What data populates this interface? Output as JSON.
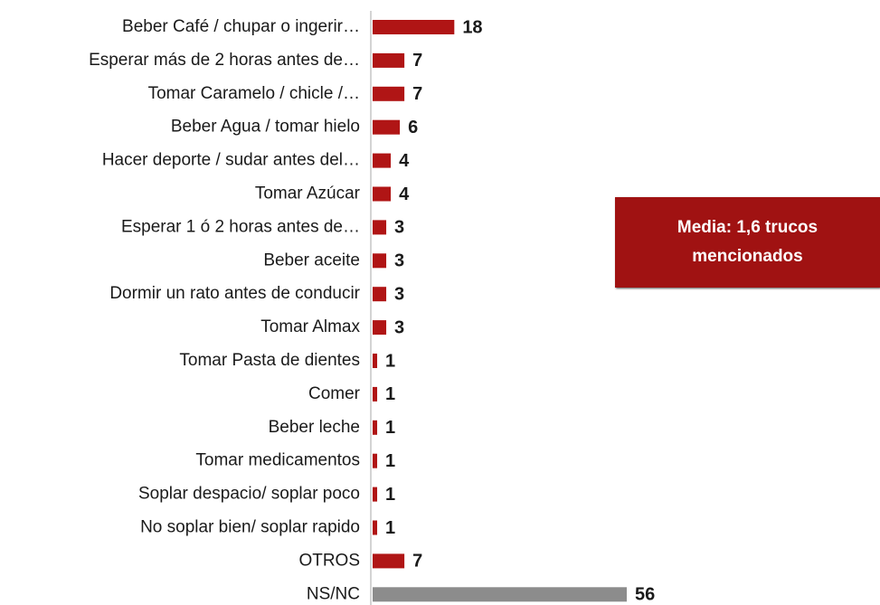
{
  "chart_data": {
    "type": "hbar",
    "categories": [
      "Beber Café / chupar o ingerir…",
      "Esperar más de 2 horas antes de…",
      "Tomar Caramelo / chicle /…",
      "Beber Agua / tomar hielo",
      "Hacer deporte / sudar antes del…",
      "Tomar Azúcar",
      "Esperar 1 ó 2 horas antes de…",
      "Beber aceite",
      "Dormir un rato antes de conducir",
      "Tomar Almax",
      "Tomar Pasta de dientes",
      "Comer",
      "Beber leche",
      "Tomar medicamentos",
      "Soplar despacio/ soplar poco",
      "No soplar bien/ soplar rapido",
      "OTROS",
      "NS/NC"
    ],
    "values": [
      18,
      7,
      7,
      6,
      4,
      4,
      3,
      3,
      3,
      3,
      1,
      1,
      1,
      1,
      1,
      1,
      7,
      56
    ],
    "colors": [
      "#b01515",
      "#b01515",
      "#b01515",
      "#b01515",
      "#b01515",
      "#b01515",
      "#b01515",
      "#b01515",
      "#b01515",
      "#b01515",
      "#b01515",
      "#b01515",
      "#b01515",
      "#b01515",
      "#b01515",
      "#b01515",
      "#b01515",
      "#8c8c8c"
    ],
    "annotation": "Media: 1,6 trucos mencionados"
  }
}
